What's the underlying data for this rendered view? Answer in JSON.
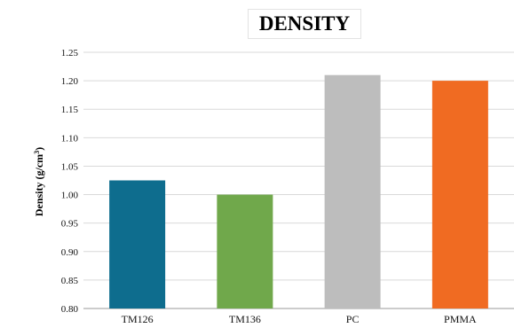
{
  "chart_data": {
    "type": "bar",
    "title": "DENSITY",
    "xlabel": "",
    "ylabel": "Density (g/cm",
    "ylabel_superscript": "3",
    "ylabel_suffix": ")",
    "categories": [
      "TM126",
      "TM136",
      "PC",
      "PMMA"
    ],
    "values": [
      1.025,
      1.0,
      1.21,
      1.2
    ],
    "colors": [
      "#0e6d8e",
      "#70a84b",
      "#bdbdbd",
      "#f06b22"
    ],
    "ylim": [
      0.8,
      1.25
    ],
    "yticks": [
      "0.80",
      "0.85",
      "0.90",
      "0.95",
      "1.00",
      "1.05",
      "1.10",
      "1.15",
      "1.20",
      "1.25"
    ],
    "grid": true,
    "legend": "none"
  }
}
